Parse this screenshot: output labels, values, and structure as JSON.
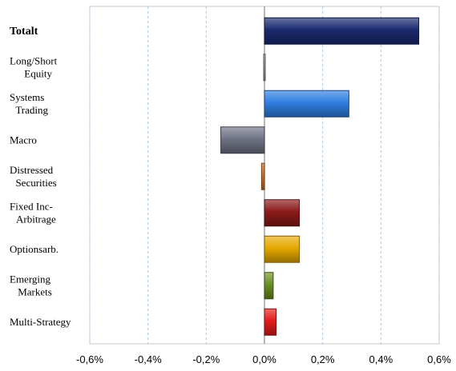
{
  "chart_data": {
    "type": "bar",
    "orientation": "horizontal",
    "categories": [
      {
        "lines": [
          "Totalt"
        ],
        "bold": true
      },
      {
        "lines": [
          "Long/Short",
          "Equity"
        ],
        "bold": false
      },
      {
        "lines": [
          "Systems",
          "Trading"
        ],
        "bold": false
      },
      {
        "lines": [
          "Macro"
        ],
        "bold": false
      },
      {
        "lines": [
          "Distressed",
          "Securities"
        ],
        "bold": false
      },
      {
        "lines": [
          "Fixed Inc-",
          "Arbitrage"
        ],
        "bold": false
      },
      {
        "lines": [
          "Optionsarb."
        ],
        "bold": false
      },
      {
        "lines": [
          "Emerging",
          "Markets"
        ],
        "bold": false
      },
      {
        "lines": [
          "Multi-Strategy"
        ],
        "bold": false
      }
    ],
    "values": [
      0.53,
      0.0,
      0.29,
      -0.15,
      -0.01,
      0.12,
      0.12,
      0.03,
      0.04
    ],
    "colors": [
      "#1a2a6e",
      "#9a9a9a",
      "#2f7ee0",
      "#6f7384",
      "#c8702a",
      "#8b1a1a",
      "#e6a800",
      "#6b8e23",
      "#e31b1b"
    ],
    "xlim": [
      -0.6,
      0.6
    ],
    "xticks": [
      -0.6,
      -0.4,
      -0.2,
      0.0,
      0.2,
      0.4,
      0.6
    ],
    "xtick_labels": [
      "-0,6%",
      "-0,4%",
      "-0,2%",
      "0,0%",
      "0,2%",
      "0,4%",
      "0,6%"
    ],
    "grid": "vertical-dashed",
    "title": "",
    "xlabel": "",
    "ylabel": ""
  }
}
